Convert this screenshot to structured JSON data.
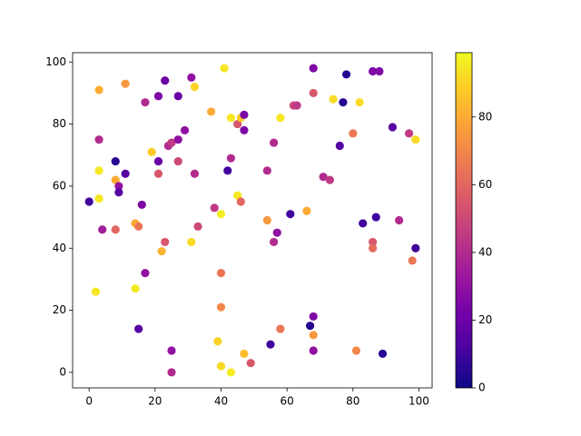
{
  "chart_data": {
    "type": "scatter",
    "colormap": "plasma",
    "x": [
      0,
      3,
      3,
      3,
      3,
      4,
      2,
      8,
      8,
      9,
      9,
      8,
      11,
      11,
      14,
      15,
      14,
      15,
      16,
      17,
      17,
      19,
      21,
      21,
      21,
      22,
      23,
      23,
      24,
      25,
      25,
      25,
      27,
      27,
      27,
      29,
      31,
      32,
      32,
      31,
      33,
      37,
      38,
      41,
      40,
      40,
      40,
      39,
      40,
      43,
      42,
      43,
      43,
      45,
      46,
      47,
      47,
      45,
      46,
      47,
      49,
      54,
      54,
      56,
      57,
      56,
      55,
      58,
      58,
      61,
      62,
      63,
      66,
      67,
      68,
      68,
      68,
      68,
      68,
      71,
      73,
      74,
      77,
      78,
      76,
      80,
      82,
      81,
      83,
      87,
      86,
      88,
      86,
      86,
      89,
      92,
      94,
      97,
      99,
      99,
      98
    ],
    "y": [
      55,
      91,
      75,
      65,
      56,
      46,
      26,
      68,
      62,
      60,
      58,
      46,
      93,
      64,
      48,
      47,
      27,
      14,
      54,
      87,
      32,
      71,
      89,
      68,
      64,
      39,
      94,
      42,
      73,
      74,
      7,
      0,
      89,
      75,
      68,
      78,
      95,
      92,
      64,
      42,
      47,
      84,
      53,
      98,
      51,
      32,
      21,
      10,
      2,
      0,
      65,
      82,
      69,
      80,
      82,
      83,
      78,
      57,
      55,
      6,
      3,
      65,
      49,
      74,
      45,
      42,
      9,
      82,
      14,
      51,
      86,
      86,
      52,
      15,
      18,
      12,
      7,
      98,
      90,
      63,
      62,
      88,
      87,
      96,
      73,
      77,
      87,
      7,
      48,
      50,
      97,
      97,
      42,
      40,
      6,
      79,
      49,
      77,
      75,
      40,
      36
    ],
    "c": [
      10,
      80,
      40,
      95,
      95,
      35,
      95,
      5,
      80,
      30,
      15,
      60,
      75,
      15,
      80,
      65,
      95,
      15,
      25,
      40,
      30,
      88,
      25,
      20,
      55,
      82,
      20,
      55,
      40,
      45,
      30,
      40,
      20,
      30,
      50,
      30,
      30,
      90,
      40,
      92,
      50,
      80,
      45,
      95,
      96,
      65,
      70,
      90,
      92,
      96,
      10,
      95,
      40,
      55,
      88,
      25,
      25,
      95,
      60,
      85,
      55,
      40,
      75,
      40,
      30,
      40,
      10,
      95,
      65,
      10,
      50,
      45,
      80,
      5,
      25,
      75,
      30,
      25,
      55,
      40,
      45,
      92,
      5,
      5,
      15,
      65,
      92,
      70,
      10,
      10,
      25,
      25,
      55,
      62,
      5,
      15,
      40,
      45,
      92,
      10,
      65
    ],
    "xlim": [
      -5,
      104
    ],
    "ylim": [
      -5,
      103
    ],
    "clim": [
      0,
      99
    ],
    "xticks": [
      0,
      20,
      40,
      60,
      80,
      100
    ],
    "yticks": [
      0,
      20,
      40,
      60,
      80,
      100
    ],
    "cticks": [
      0,
      20,
      40,
      60,
      80
    ]
  }
}
